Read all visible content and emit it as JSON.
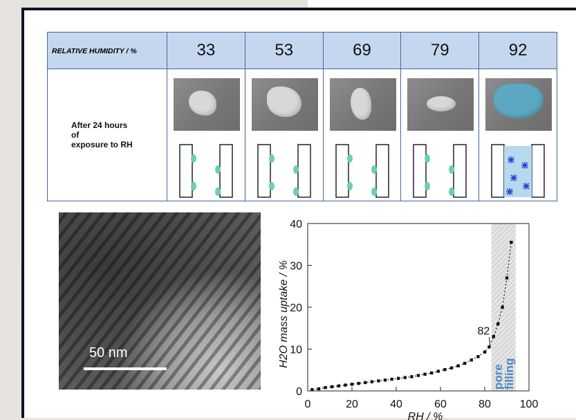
{
  "table": {
    "header_label": "RELATIVE HUMIDITY / %",
    "rh_values": [
      "33",
      "53",
      "69",
      "79",
      "92"
    ],
    "row_label": "After 24 hours\nof\nexposure to RH"
  },
  "tem": {
    "scale_label": "50 nm"
  },
  "chart_data": {
    "type": "scatter",
    "xlabel": "RH / %",
    "ylabel": "H2O mass uptake / %",
    "xlim": [
      0,
      100
    ],
    "ylim": [
      0,
      40
    ],
    "x_ticks": [
      "0",
      "20",
      "40",
      "60",
      "80",
      "100"
    ],
    "y_ticks": [
      "0",
      "10",
      "20",
      "30",
      "40"
    ],
    "annotation_point": "82",
    "shaded_region_label_line1": "pore",
    "shaded_region_label_line2": "filling",
    "shaded_region_x": [
      83,
      94
    ],
    "series": [
      {
        "x": [
          2,
          5,
          8,
          11,
          14,
          17,
          20,
          23,
          26,
          29,
          32,
          35,
          38,
          41,
          44,
          47,
          50,
          53,
          56,
          59,
          62,
          65,
          68,
          71,
          74,
          77,
          80,
          82,
          84,
          86,
          88,
          90,
          92
        ],
        "y": [
          0.3,
          0.5,
          0.8,
          1.0,
          1.2,
          1.4,
          1.6,
          1.8,
          2.0,
          2.2,
          2.4,
          2.6,
          2.8,
          3.0,
          3.2,
          3.4,
          3.7,
          4.0,
          4.3,
          4.7,
          5.1,
          5.5,
          6.0,
          6.6,
          7.4,
          8.2,
          9.3,
          10.5,
          13,
          16,
          20,
          27,
          35.5
        ]
      }
    ],
    "grid": false,
    "colors": {
      "shade": "#d9d9d9",
      "annotation": "#4d87c7",
      "marker": "#111111"
    }
  }
}
